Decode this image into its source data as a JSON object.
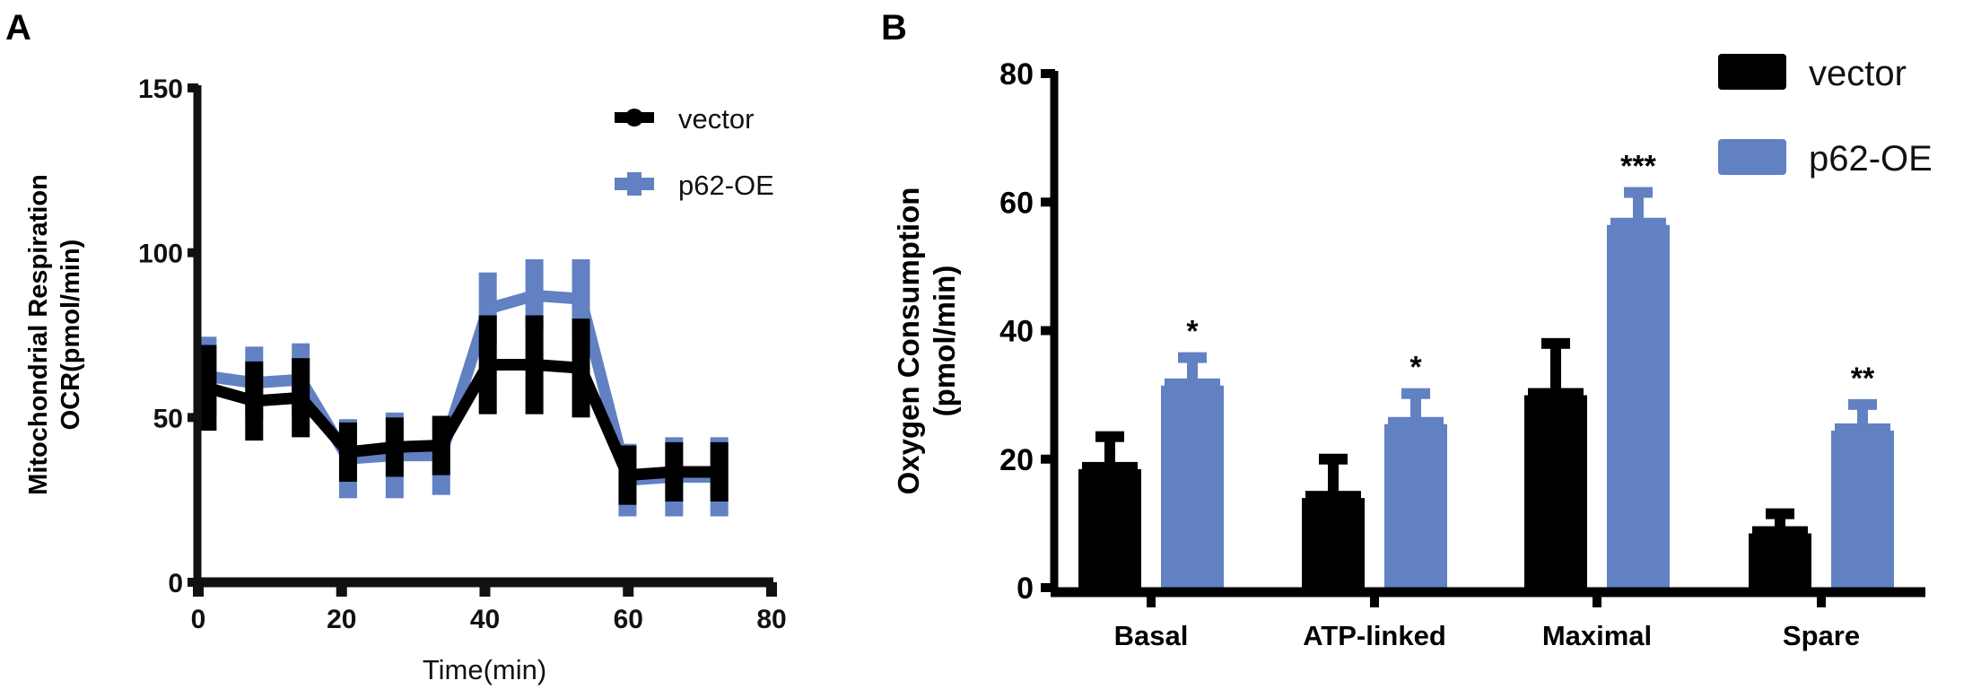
{
  "figure": {
    "panel_labels": [
      "A",
      "B"
    ]
  },
  "colors": {
    "vector": "#000000",
    "p62": "#6281c3"
  },
  "chart_data": [
    {
      "panel": "A",
      "type": "line",
      "title": "",
      "xlabel": "Time(min)",
      "ylabel_line1": "Mitochondrial Respiration",
      "ylabel_line2": "OCR(pmol/min)",
      "xlim": [
        0,
        80
      ],
      "ylim": [
        0,
        150
      ],
      "xticks": [
        0,
        20,
        40,
        60,
        80
      ],
      "yticks": [
        0,
        50,
        100,
        150
      ],
      "grid": false,
      "legend_position": "top-right",
      "x": [
        1.3,
        7.8,
        14.3,
        20.9,
        27.4,
        33.9,
        40.4,
        46.9,
        53.4,
        59.9,
        66.4,
        72.7
      ],
      "series": [
        {
          "name": "vector",
          "values": [
            59,
            55,
            56,
            39.5,
            41,
            41.5,
            66,
            66,
            65,
            32.5,
            33.5,
            33.5
          ],
          "error": [
            13,
            12,
            12,
            9,
            9,
            9,
            15,
            15,
            15,
            9,
            9,
            9
          ]
        },
        {
          "name": "p62-OE",
          "values": [
            62.5,
            60.5,
            61.5,
            37.5,
            38.5,
            38.5,
            83,
            87,
            86,
            31,
            32,
            32
          ],
          "error": [
            12,
            11,
            11,
            12,
            13,
            12,
            11,
            11,
            12,
            11,
            12,
            12
          ]
        }
      ]
    },
    {
      "panel": "B",
      "type": "bar",
      "title": "",
      "xlabel": "",
      "ylabel_line1": "Oxygen Consumption",
      "ylabel_line2": "(pmol/min)",
      "ylim": [
        0,
        80
      ],
      "yticks": [
        0,
        20,
        40,
        60,
        80
      ],
      "grid": false,
      "legend_position": "top-right",
      "categories": [
        "Basal",
        "ATP-linked",
        "Maximal",
        "Spare"
      ],
      "series": [
        {
          "name": "vector",
          "values": [
            19,
            14.5,
            30.5,
            9
          ],
          "error": [
            4.5,
            5.5,
            7.5,
            2.5
          ]
        },
        {
          "name": "p62-OE",
          "values": [
            32,
            26,
            57,
            25
          ],
          "error": [
            3.8,
            4.2,
            4.5,
            3.5
          ]
        }
      ],
      "significance": [
        "*",
        "*",
        "***",
        "**"
      ]
    }
  ]
}
